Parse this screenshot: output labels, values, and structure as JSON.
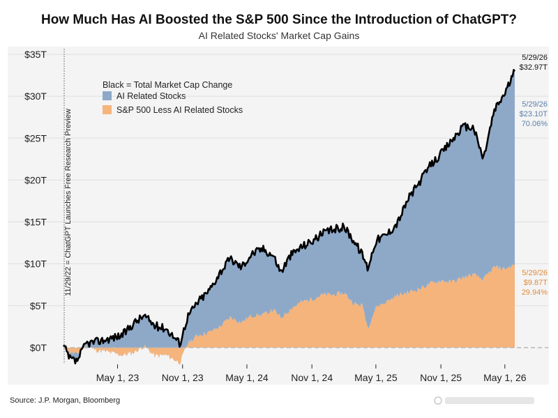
{
  "header": {
    "title": "How Much Has AI Boosted the S&P 500 Since the Introduction of ChatGPT?",
    "subtitle": "AI Related Stocks' Market Cap Gains"
  },
  "footer": {
    "source": "Source: J.P. Morgan, Bloomberg"
  },
  "colors": {
    "ai": "#8ea9c8",
    "non_ai": "#f5b47c",
    "total": "#000000",
    "ai_label": "#5b7fa8",
    "non_ai_label": "#e08a3c",
    "background": "#f4f4f4"
  },
  "chart_data": {
    "type": "area",
    "title": "How Much Has AI Boosted the S&P 500 Since the Introduction of ChatGPT?",
    "subtitle": "AI Related Stocks' Market Cap Gains",
    "ylim": [
      -2,
      35
    ],
    "y_ticks": [
      0,
      5,
      10,
      15,
      20,
      25,
      30,
      35
    ],
    "y_tick_labels": [
      "$0T",
      "$5T",
      "$10T",
      "$15T",
      "$20T",
      "$25T",
      "$30T",
      "$35T"
    ],
    "x_start": "2022-11-29",
    "x_end": "2026-05-29",
    "x_ticks": [
      "2023-05-01",
      "2023-11-01",
      "2024-05-01",
      "2024-11-01",
      "2025-05-01",
      "2025-11-01",
      "2026-05-01"
    ],
    "x_tick_labels": [
      "May 1, 23",
      "Nov 1, 23",
      "May 1, 24",
      "Nov 1, 24",
      "May 1, 25",
      "Nov 1, 25",
      "May 1, 26"
    ],
    "legend": {
      "heading": "Black = Total Market Cap Change",
      "entries": [
        "AI Related Stocks",
        "S&P 500 Less AI Related Stocks"
      ],
      "placement": "top-left"
    },
    "vertical_annotation": {
      "date": "2022-11-29",
      "text": "11/29/22 = ChatGPT Launches Free Research Preview"
    },
    "end_labels": {
      "total": {
        "date": "5/29/26",
        "value": "$32.97T"
      },
      "ai": {
        "date": "5/29/26",
        "value": "$23.10T",
        "share": "70.06%"
      },
      "non_ai": {
        "date": "5/29/26",
        "value": "$9.87T",
        "share": "29.94%"
      }
    },
    "series": [
      {
        "name": "S&P 500 Less AI Related Stocks",
        "x": [
          "2022-11-29",
          "2022-12-15",
          "2023-01-05",
          "2023-02-01",
          "2023-03-01",
          "2023-04-01",
          "2023-05-15",
          "2023-06-15",
          "2023-07-15",
          "2023-08-15",
          "2023-09-15",
          "2023-10-25",
          "2023-11-15",
          "2023-12-15",
          "2024-01-15",
          "2024-02-15",
          "2024-03-15",
          "2024-04-15",
          "2024-05-15",
          "2024-06-15",
          "2024-07-15",
          "2024-08-05",
          "2024-09-01",
          "2024-10-01",
          "2024-11-01",
          "2024-12-01",
          "2025-01-01",
          "2025-02-01",
          "2025-03-01",
          "2025-03-25",
          "2025-04-08",
          "2025-05-01",
          "2025-06-01",
          "2025-07-01",
          "2025-08-01",
          "2025-09-01",
          "2025-10-01",
          "2025-11-01",
          "2025-12-01",
          "2026-01-01",
          "2026-02-01",
          "2026-03-01",
          "2026-04-01",
          "2026-05-01",
          "2026-05-29"
        ],
        "values": [
          0,
          -0.5,
          -0.8,
          0.2,
          -0.3,
          -0.5,
          -0.9,
          -0.6,
          0.2,
          -1.0,
          -0.9,
          -1.8,
          0.5,
          1.5,
          1.8,
          2.5,
          3.6,
          3.0,
          3.8,
          3.9,
          4.5,
          3.5,
          4.6,
          5.4,
          5.8,
          6.3,
          6.3,
          6.5,
          5.2,
          5.0,
          2.3,
          4.8,
          5.5,
          6.2,
          6.6,
          7.0,
          7.6,
          8.0,
          7.8,
          8.3,
          8.7,
          8.1,
          9.6,
          9.4,
          9.87
        ]
      },
      {
        "name": "AI Related Stocks",
        "x": [
          "2022-11-29",
          "2022-12-15",
          "2023-01-05",
          "2023-02-01",
          "2023-03-01",
          "2023-04-01",
          "2023-05-15",
          "2023-06-15",
          "2023-07-15",
          "2023-08-15",
          "2023-09-15",
          "2023-10-25",
          "2023-11-15",
          "2023-12-15",
          "2024-01-15",
          "2024-02-15",
          "2024-03-15",
          "2024-04-15",
          "2024-05-15",
          "2024-06-15",
          "2024-07-15",
          "2024-08-05",
          "2024-09-01",
          "2024-10-01",
          "2024-11-01",
          "2024-12-01",
          "2025-01-01",
          "2025-02-01",
          "2025-03-01",
          "2025-03-25",
          "2025-04-08",
          "2025-05-01",
          "2025-06-01",
          "2025-07-01",
          "2025-08-01",
          "2025-09-01",
          "2025-10-01",
          "2025-11-01",
          "2025-12-01",
          "2026-01-01",
          "2026-02-01",
          "2026-03-01",
          "2026-04-01",
          "2026-05-01",
          "2026-05-29"
        ],
        "values": [
          0.3,
          -0.8,
          -0.9,
          0.3,
          1.0,
          1.5,
          2.4,
          3.5,
          3.6,
          3.6,
          3.2,
          2.3,
          3.2,
          4.0,
          5.0,
          6.5,
          7.0,
          6.6,
          7.4,
          7.9,
          6.5,
          5.5,
          6.4,
          6.6,
          6.9,
          7.3,
          7.8,
          7.9,
          7.5,
          6.0,
          7.2,
          8.0,
          8.0,
          8.7,
          11.2,
          12.7,
          14.1,
          15.1,
          16.9,
          18.0,
          17.6,
          14.4,
          18.7,
          21.0,
          23.1
        ]
      },
      {
        "name": "Total Market Cap Change",
        "x": [
          "2022-11-29",
          "2022-12-15",
          "2023-01-05",
          "2023-02-01",
          "2023-03-01",
          "2023-04-01",
          "2023-05-15",
          "2023-06-15",
          "2023-07-15",
          "2023-08-15",
          "2023-09-15",
          "2023-10-25",
          "2023-11-15",
          "2023-12-15",
          "2024-01-15",
          "2024-02-15",
          "2024-03-15",
          "2024-04-15",
          "2024-05-15",
          "2024-06-15",
          "2024-07-15",
          "2024-08-05",
          "2024-09-01",
          "2024-10-01",
          "2024-11-01",
          "2024-12-01",
          "2025-01-01",
          "2025-02-01",
          "2025-03-01",
          "2025-03-25",
          "2025-04-08",
          "2025-05-01",
          "2025-06-01",
          "2025-07-01",
          "2025-08-01",
          "2025-09-01",
          "2025-10-01",
          "2025-11-01",
          "2025-12-01",
          "2026-01-01",
          "2026-02-01",
          "2026-03-01",
          "2026-04-01",
          "2026-05-01",
          "2026-05-29"
        ],
        "values": [
          0.3,
          -1.3,
          -1.7,
          0.5,
          0.7,
          1.0,
          1.5,
          2.9,
          3.8,
          2.6,
          2.3,
          0.5,
          3.7,
          5.5,
          6.8,
          9.0,
          10.6,
          9.6,
          11.2,
          11.8,
          11.0,
          9.0,
          11.0,
          12.0,
          12.7,
          13.6,
          14.1,
          14.4,
          12.7,
          11.0,
          9.5,
          12.8,
          13.5,
          14.9,
          17.8,
          19.7,
          21.7,
          23.1,
          24.7,
          26.3,
          26.3,
          22.5,
          28.3,
          30.4,
          32.97
        ]
      }
    ]
  }
}
